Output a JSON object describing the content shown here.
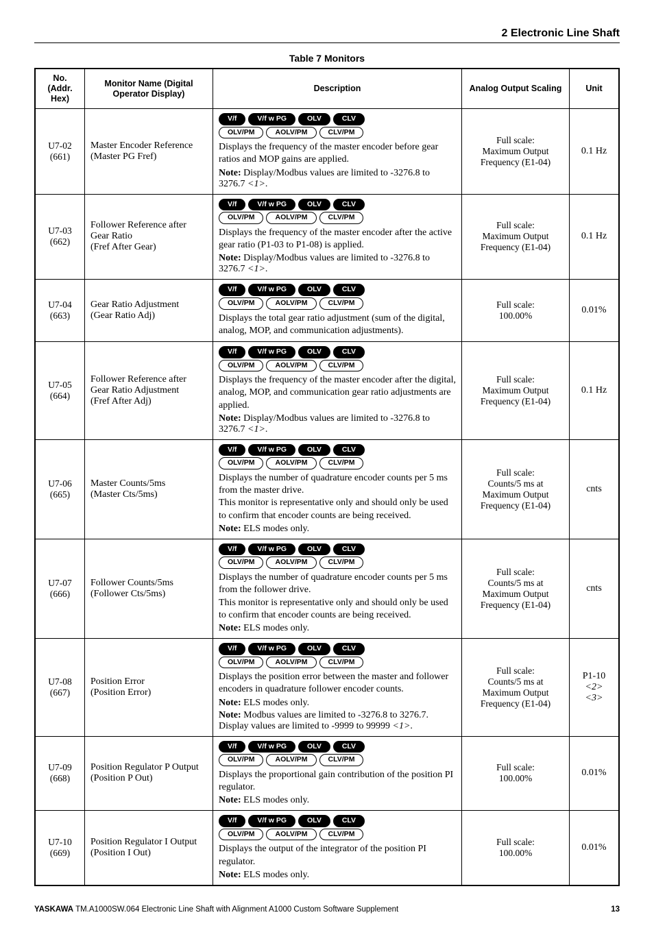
{
  "header": {
    "section": "2  Electronic Line Shaft"
  },
  "tableTitle": "Table 7  Monitors",
  "columns": {
    "no": "No. (Addr. Hex)",
    "name": "Monitor Name (Digital Operator Display)",
    "desc": "Description",
    "scale": "Analog Output Scaling",
    "unit": "Unit"
  },
  "badges": {
    "row1": [
      "V/f",
      "V/f w PG",
      "OLV",
      "CLV"
    ],
    "row2": [
      "OLV/PM",
      "AOLV/PM",
      "CLV/PM"
    ]
  },
  "rows": [
    {
      "no": "U7-02\n(661)",
      "name": "Master Encoder Reference\n(Master PG Fref)",
      "desc": "Displays the frequency of the master encoder before gear ratios and MOP gains are applied.",
      "note": "Display/Modbus values are limited to -3276.8 to 3276.7 ",
      "noteTag": "<1>",
      "notePost": ".",
      "scale": "Full scale:\nMaximum Output Frequency (E1-04)",
      "unit": "0.1 Hz"
    },
    {
      "no": "U7-03\n(662)",
      "name": "Follower Reference after Gear Ratio\n(Fref After Gear)",
      "desc": "Displays the frequency of the master encoder after the active gear ratio (P1-03 to P1-08) is applied.",
      "note": "Display/Modbus values are limited to -3276.8 to 3276.7 ",
      "noteTag": "<1>",
      "notePost": ".",
      "scale": "Full scale:\nMaximum Output Frequency (E1-04)",
      "unit": "0.1 Hz"
    },
    {
      "no": "U7-04\n(663)",
      "name": "Gear Ratio Adjustment\n(Gear Ratio Adj)",
      "desc": "Displays the total gear ratio adjustment (sum of the digital, analog, MOP, and communication adjustments).",
      "scale": "Full scale:\n100.00%",
      "unit": "0.01%"
    },
    {
      "no": "U7-05\n(664)",
      "name": "Follower Reference after Gear Ratio Adjustment\n(Fref After Adj)",
      "desc": "Displays the frequency of the master encoder after the digital, analog, MOP, and communication gear ratio adjustments are applied.",
      "note": "Display/Modbus values are limited to -3276.8 to 3276.7 ",
      "noteTag": "<1>",
      "notePost": ".",
      "scale": "Full scale:\nMaximum Output Frequency (E1-04)",
      "unit": "0.1 Hz"
    },
    {
      "no": "U7-06\n(665)",
      "name": "Master Counts/5ms\n(Master Cts/5ms)",
      "desc": "Displays the number of quadrature encoder counts per 5 ms from the master drive.\nThis monitor is representative only and should only be used to confirm that encoder counts are being received.",
      "note2": "ELS modes only.",
      "scale": "Full scale:\nCounts/5 ms at Maximum Output Frequency (E1-04)",
      "unit": "cnts"
    },
    {
      "no": "U7-07\n(666)",
      "name": "Follower Counts/5ms\n(Follower Cts/5ms)",
      "desc": "Displays the number of quadrature encoder counts per 5 ms from the follower drive.\nThis monitor is representative only and should only be used to confirm that encoder counts are being received.",
      "note2": "ELS modes only.",
      "scale": "Full scale:\nCounts/5 ms at Maximum Output Frequency (E1-04)",
      "unit": "cnts"
    },
    {
      "no": "U7-08\n(667)",
      "name": "Position Error\n(Position Error)",
      "desc": "Displays the position error between the master and follower encoders in quadrature follower encoder counts.",
      "note2": "ELS modes only.",
      "note": "Modbus values are limited to -3276.8 to 3276.7. Display values are limited to -9999 to 99999 ",
      "noteTag": "<1>",
      "notePost": ".",
      "scale": "Full scale:\nCounts/5 ms at Maximum Output Frequency (E1-04)",
      "unit": "P1-10\n<2> <3>"
    },
    {
      "no": "U7-09\n(668)",
      "name": "Position Regulator P Output\n(Position P Out)",
      "desc": "Displays the proportional gain contribution of the position PI regulator.",
      "note2": "ELS modes only.",
      "scale": "Full scale:\n100.00%",
      "unit": "0.01%"
    },
    {
      "no": "U7-10\n(669)",
      "name": "Position Regulator I Output\n(Position I Out)",
      "desc": "Displays the output of the integrator of the position PI regulator.",
      "note2": "ELS modes only.",
      "scale": "Full scale:\n100.00%",
      "unit": "0.01%"
    }
  ],
  "footer": {
    "brand": "YASKAWA",
    "doc": "  TM.A1000SW.064 Electronic Line Shaft with Alignment A1000 Custom Software Supplement",
    "page": "13"
  }
}
